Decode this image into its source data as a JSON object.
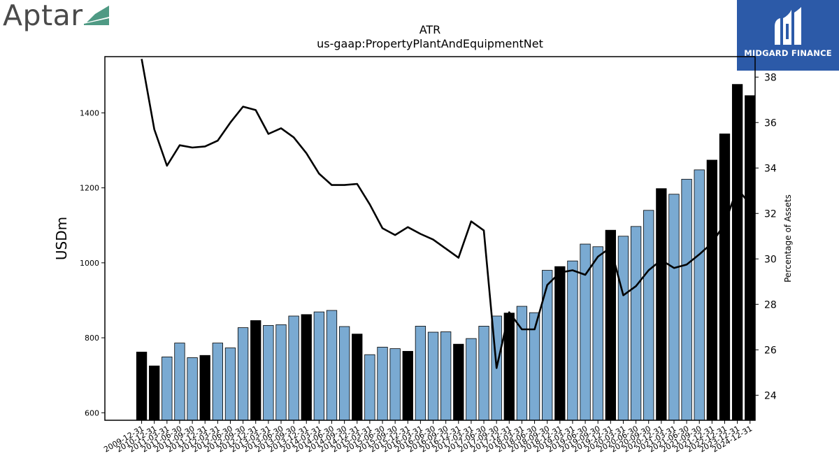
{
  "brand_left": {
    "name": "Aptar",
    "mark_color": "#4f9a84"
  },
  "brand_right": {
    "name": "MIDGARD FINANCE",
    "bg_color": "#2c5aa8"
  },
  "chart_data": {
    "type": "bar",
    "title": "ATR",
    "subtitle": "us-gaap:PropertyPlantAndEquipmentNet",
    "ylabel": "USDm",
    "y2label": "Percentage of Assets",
    "ylim": [
      580,
      1550
    ],
    "y2lim": [
      22.9,
      38.9
    ],
    "yticks": [
      600,
      800,
      1000,
      1200,
      1400
    ],
    "y2ticks": [
      24,
      26,
      28,
      30,
      32,
      34,
      36,
      38
    ],
    "colors": {
      "annual": "#000000",
      "quarterly": "#7aaad2",
      "line": "#000000"
    },
    "categories": [
      "2009-12-31",
      "2010-12-31",
      "2011-03-31",
      "2011-06-30",
      "2011-09-30",
      "2011-12-31",
      "2012-03-31",
      "2012-06-30",
      "2012-09-30",
      "2012-12-31",
      "2013-03-31",
      "2013-06-30",
      "2013-09-30",
      "2013-12-31",
      "2014-03-31",
      "2014-06-30",
      "2014-09-30",
      "2014-12-31",
      "2015-03-31",
      "2015-06-30",
      "2015-09-30",
      "2015-12-31",
      "2016-03-31",
      "2016-06-30",
      "2016-09-30",
      "2016-12-31",
      "2017-03-31",
      "2017-06-30",
      "2017-09-30",
      "2017-12-31",
      "2018-03-31",
      "2018-06-30",
      "2018-09-30",
      "2018-12-31",
      "2019-03-31",
      "2019-06-30",
      "2019-09-30",
      "2019-12-31",
      "2020-03-31",
      "2020-06-30",
      "2020-09-30",
      "2020-12-31",
      "2021-03-31",
      "2021-06-30",
      "2021-09-30",
      "2021-12-31",
      "2022-12-31",
      "2023-12-31",
      "2024-12-31"
    ],
    "xtick_labels": [
      "2009-12-31",
      "2010-12-31",
      "2011-03-31",
      "2011-06-30",
      "2011-09-30",
      "2011-12-31",
      "2012-03-31",
      "2012-06-30",
      "2012-09-30",
      "2012-12-31",
      "2013-03-31",
      "2013-06-30",
      "2013-09-30",
      "2013-12-31",
      "2014-03-31",
      "2014-06-30",
      "2014-09-30",
      "2014-12-31",
      "2015-03-31",
      "2015-06-30",
      "2015-09-30",
      "2015-12-31",
      "2016-03-31",
      "2016-06-30",
      "2016-09-30",
      "2016-12-31",
      "2017-03-31",
      "2017-06-30",
      "2017-09-30",
      "2017-12-31",
      "2018-03-31",
      "2018-06-30",
      "2018-09-30",
      "2018-12-31",
      "2019-03-31",
      "2019-06-30",
      "2019-09-30",
      "2019-12-31",
      "2020-03-31",
      "2020-06-30",
      "2020-09-30",
      "2020-12-31",
      "2021-03-31",
      "2021-06-30",
      "2021-09-30",
      "2021-12-31",
      "2022-12-31",
      "2023-12-31",
      "2024-12-31"
    ],
    "annual": [
      true,
      true,
      false,
      false,
      false,
      true,
      false,
      false,
      false,
      true,
      false,
      false,
      false,
      true,
      false,
      false,
      false,
      true,
      false,
      false,
      false,
      true,
      false,
      false,
      false,
      true,
      false,
      false,
      false,
      true,
      false,
      false,
      false,
      true,
      false,
      false,
      false,
      true,
      false,
      false,
      false,
      true,
      false,
      false,
      false,
      true,
      true,
      true,
      true
    ],
    "values": [
      762,
      725,
      749,
      786,
      747,
      753,
      786,
      773,
      827,
      846,
      833,
      835,
      858,
      862,
      869,
      873,
      830,
      810,
      755,
      775,
      771,
      764,
      831,
      815,
      816,
      783,
      798,
      831,
      858,
      866,
      884,
      867,
      980,
      990,
      1005,
      1050,
      1043,
      1087,
      1071,
      1097,
      1140,
      1198,
      1183,
      1223,
      1248,
      1274,
      1344,
      1476,
      1446
    ],
    "pct_of_assets": [
      38.8,
      35.7,
      34.1,
      35.0,
      34.9,
      34.95,
      35.2,
      36.0,
      36.7,
      36.55,
      35.5,
      35.75,
      35.35,
      34.65,
      33.75,
      33.25,
      33.25,
      33.3,
      32.4,
      31.35,
      31.05,
      31.4,
      31.1,
      30.85,
      30.45,
      30.05,
      31.65,
      31.25,
      25.2,
      27.65,
      26.9,
      26.9,
      28.85,
      29.4,
      29.5,
      29.3,
      30.1,
      30.5,
      28.4,
      28.8,
      29.5,
      29.95,
      29.6,
      29.75,
      30.2,
      30.7,
      31.55,
      33.1,
      32.4
    ]
  }
}
